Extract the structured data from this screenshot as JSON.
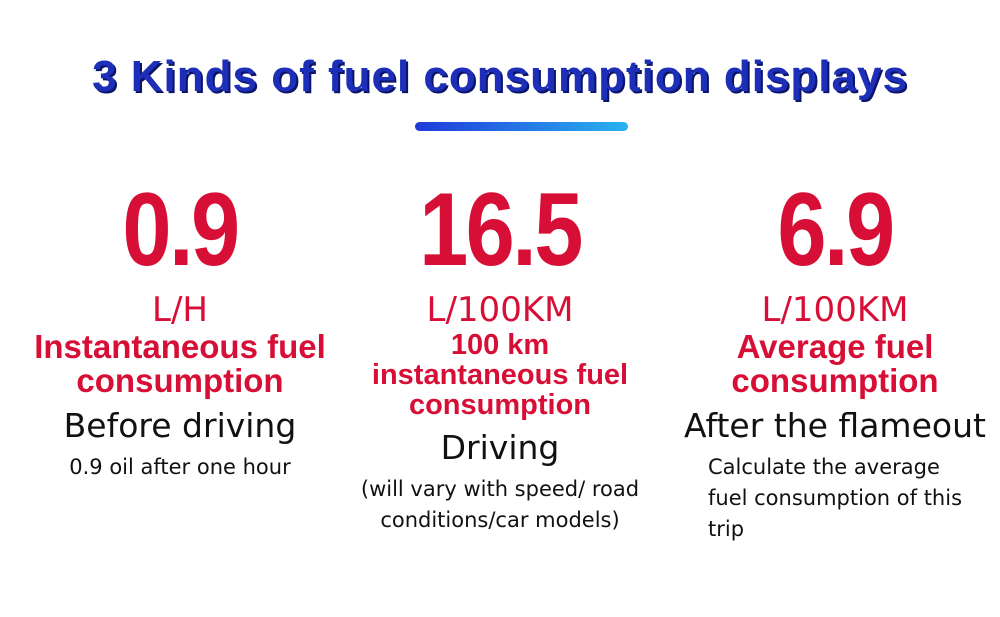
{
  "header": {
    "title": "3 Kinds of fuel consumption displays"
  },
  "columns": [
    {
      "value": "0.9",
      "unit": "L/H",
      "label": "Instantaneous fuel consumption",
      "stage": "Before driving",
      "note": "0.9 oil after one hour"
    },
    {
      "value": "16.5",
      "unit": "L/100KM",
      "label": "100 km instantaneous fuel consumption",
      "stage": "Driving",
      "note": "(will vary with speed/ road conditions/car models)"
    },
    {
      "value": "6.9",
      "unit": "L/100KM",
      "label": "Average fuel consumption",
      "stage": "After the flameout",
      "note": "Calculate the average fuel consumption of this trip"
    }
  ]
}
